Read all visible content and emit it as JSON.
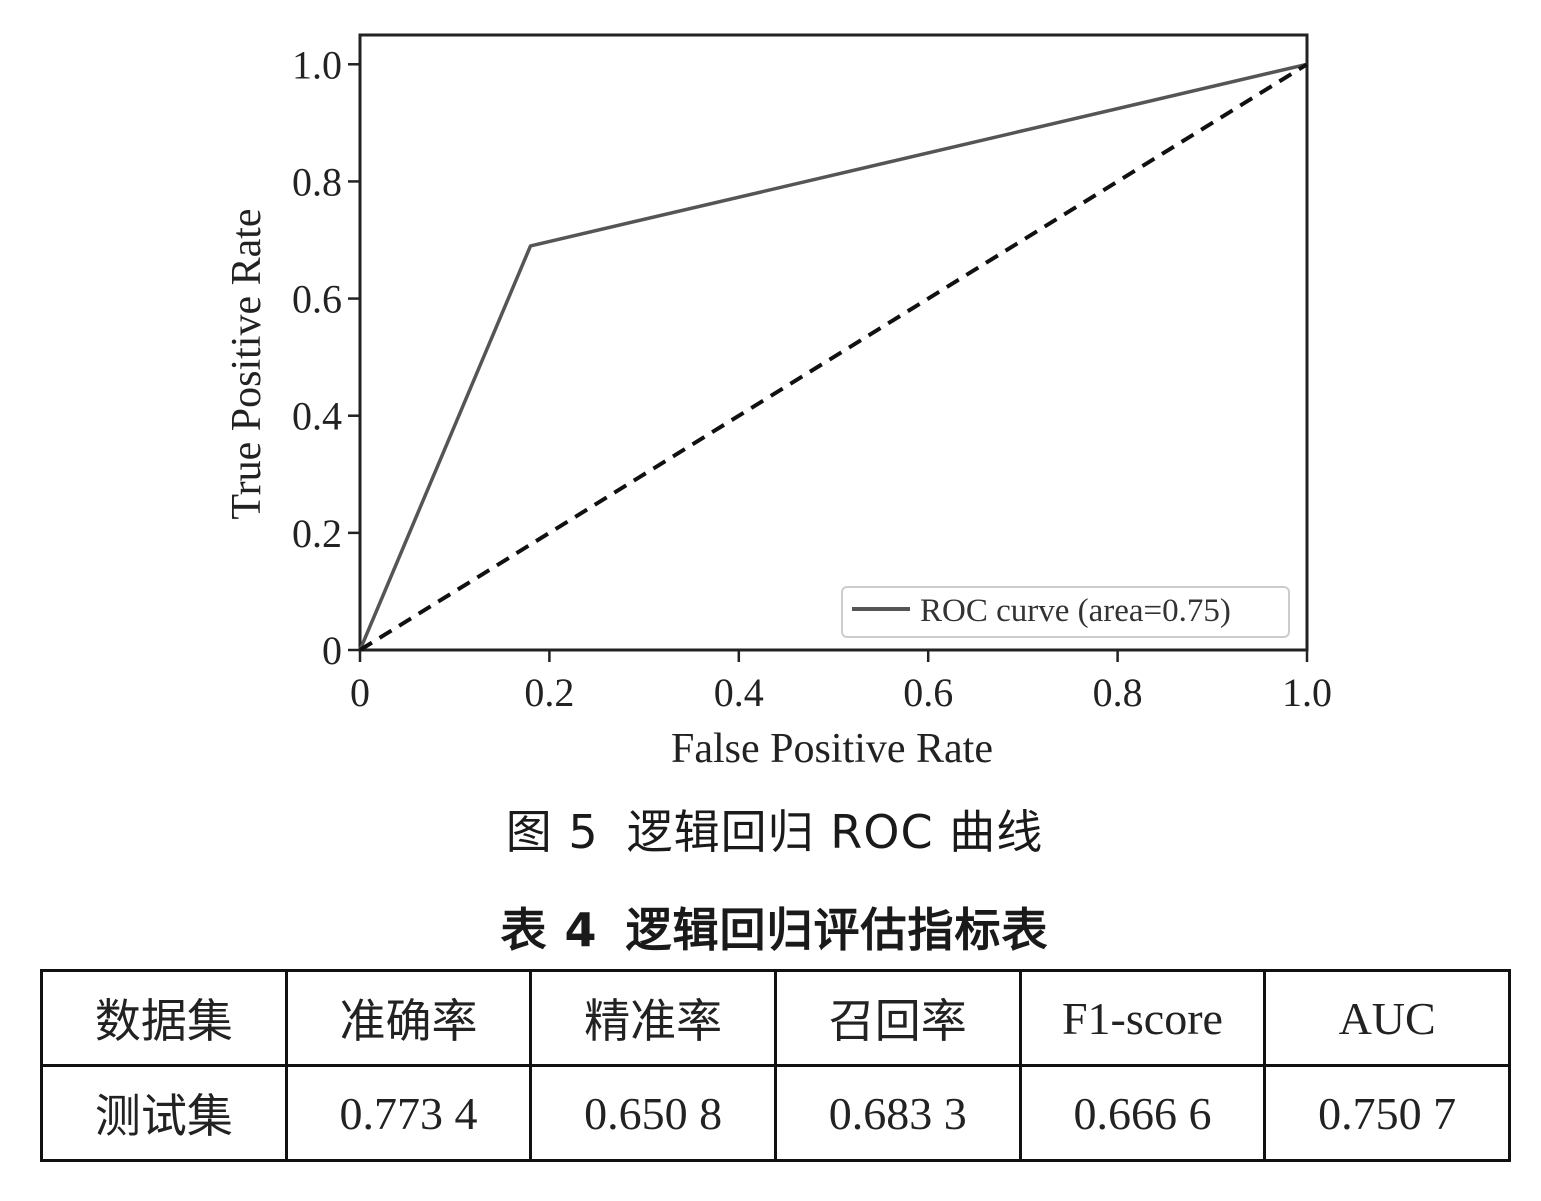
{
  "chart_data": {
    "type": "line",
    "xlabel": "False Positive Rate",
    "ylabel": "True Positive Rate",
    "xlim": [
      0,
      1.0
    ],
    "ylim": [
      0,
      1.05
    ],
    "xticks": [
      "0",
      "0.2",
      "0.4",
      "0.6",
      "0.8",
      "1.0"
    ],
    "yticks": [
      "0",
      "0.2",
      "0.4",
      "0.6",
      "0.8",
      "1.0"
    ],
    "grid": false,
    "legend_position": "lower-right",
    "series": [
      {
        "name": "ROC curve (area=0.75)",
        "style": "solid",
        "color": "#555555",
        "x": [
          0,
          0.18,
          1.0
        ],
        "y": [
          0,
          0.69,
          1.0
        ]
      },
      {
        "style": "dashed",
        "color": "#111111",
        "x": [
          0,
          1.0
        ],
        "y": [
          0,
          1.0
        ]
      }
    ]
  },
  "figure_caption": {
    "label": "图 5",
    "text": "逻辑回归 ROC 曲线"
  },
  "table_caption": {
    "label": "表 4",
    "text": "逻辑回归评估指标表"
  },
  "table": {
    "headers": [
      "数据集",
      "准确率",
      "精准率",
      "召回率",
      "F1-score",
      "AUC"
    ],
    "rows": [
      [
        "测试集",
        "0.773 4",
        "0.650 8",
        "0.683 3",
        "0.666 6",
        "0.750 7"
      ]
    ]
  }
}
